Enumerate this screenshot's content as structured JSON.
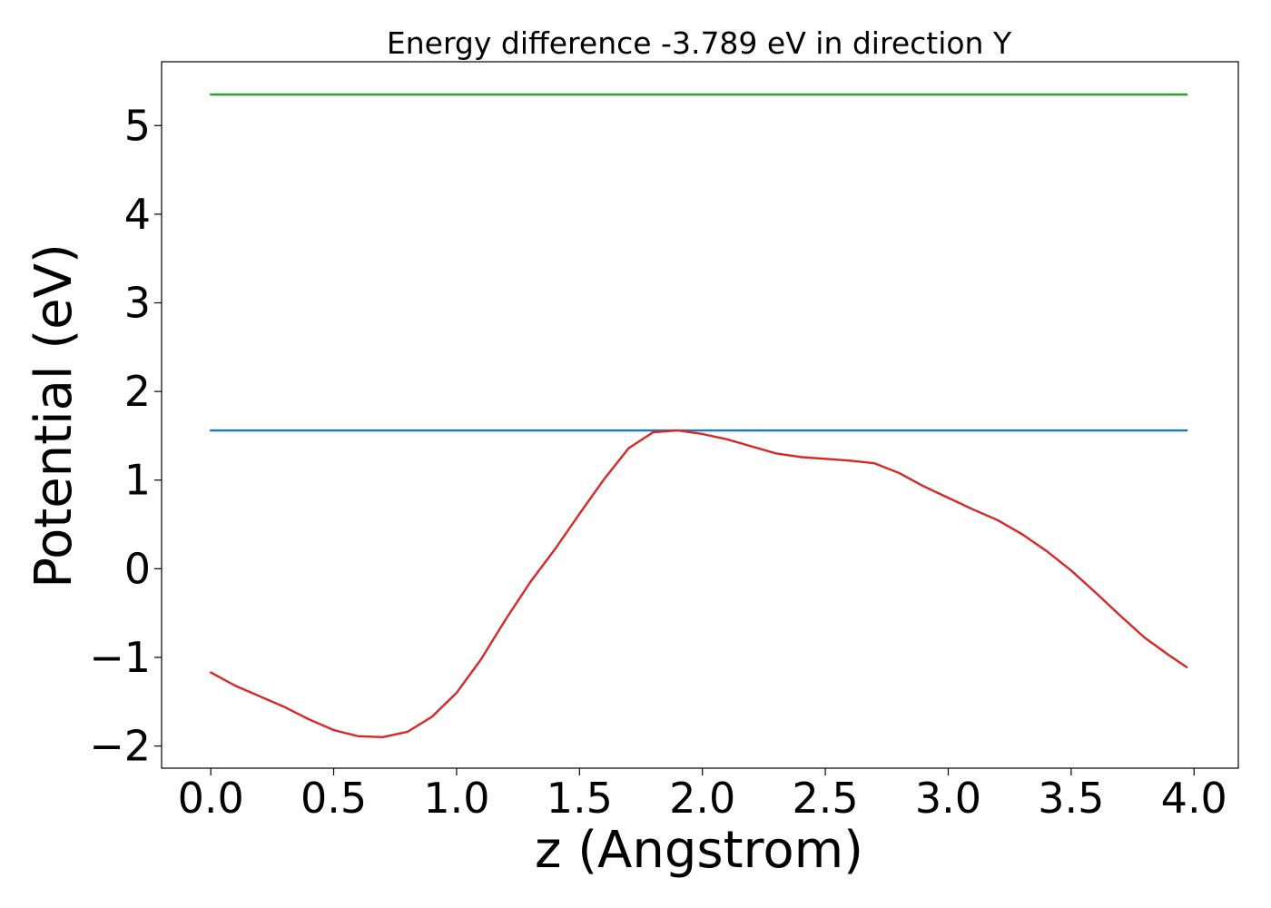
{
  "chart_data": {
    "type": "line",
    "title": "Energy difference -3.789 eV in direction Y",
    "xlabel": "z (Angstrom)",
    "ylabel": "Potential (eV)",
    "xlim": [
      -0.2,
      4.18
    ],
    "ylim": [
      -2.25,
      5.72
    ],
    "xticks": [
      0.0,
      0.5,
      1.0,
      1.5,
      2.0,
      2.5,
      3.0,
      3.5,
      4.0
    ],
    "xtick_labels": [
      "0.0",
      "0.5",
      "1.0",
      "1.5",
      "2.0",
      "2.5",
      "3.0",
      "3.5",
      "4.0"
    ],
    "yticks": [
      -2,
      -1,
      0,
      1,
      2,
      3,
      4,
      5
    ],
    "ytick_labels": [
      "−2",
      "−1",
      "0",
      "1",
      "2",
      "3",
      "4",
      "5"
    ],
    "grid": false,
    "series": [
      {
        "color": "#2ca02c",
        "x": [
          0.0,
          3.97
        ],
        "y": [
          5.35,
          5.35
        ]
      },
      {
        "color": "#1f77b4",
        "x": [
          0.0,
          3.97
        ],
        "y": [
          1.56,
          1.56
        ]
      },
      {
        "color": "#d62728",
        "x": [
          0.0,
          0.1,
          0.2,
          0.3,
          0.4,
          0.5,
          0.6,
          0.7,
          0.8,
          0.9,
          1.0,
          1.1,
          1.2,
          1.3,
          1.4,
          1.5,
          1.6,
          1.7,
          1.8,
          1.9,
          2.0,
          2.1,
          2.2,
          2.3,
          2.4,
          2.5,
          2.6,
          2.7,
          2.8,
          2.9,
          3.0,
          3.1,
          3.2,
          3.3,
          3.4,
          3.5,
          3.6,
          3.7,
          3.8,
          3.9,
          3.97
        ],
        "y": [
          -1.17,
          -1.32,
          -1.44,
          -1.56,
          -1.7,
          -1.82,
          -1.89,
          -1.9,
          -1.84,
          -1.67,
          -1.4,
          -1.02,
          -0.57,
          -0.15,
          0.22,
          0.62,
          1.01,
          1.36,
          1.54,
          1.56,
          1.52,
          1.46,
          1.38,
          1.3,
          1.26,
          1.24,
          1.22,
          1.19,
          1.08,
          0.93,
          0.8,
          0.67,
          0.55,
          0.39,
          0.2,
          -0.02,
          -0.27,
          -0.53,
          -0.78,
          -0.98,
          -1.11
        ]
      }
    ]
  }
}
